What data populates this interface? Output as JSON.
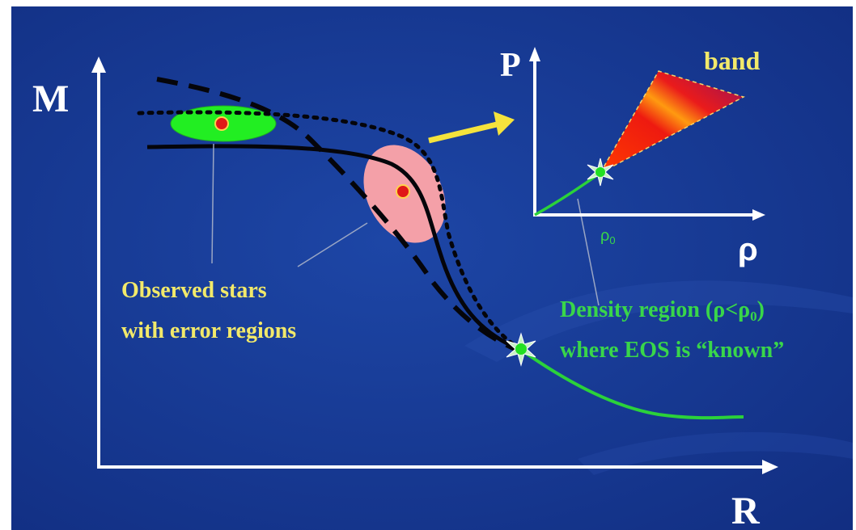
{
  "diagram": {
    "main_axes": {
      "y_label": "M",
      "x_label": "R"
    },
    "inset_axes": {
      "y_label": "P",
      "x_label": "ρ",
      "x_tick": "ρ",
      "x_tick_sub": "0",
      "band_label": "band"
    },
    "observed_caption": {
      "line1": "Observed stars",
      "line2": "with error regions"
    },
    "density_caption": {
      "line1_prefix": "Density region (ρ<ρ",
      "line1_sub": "0",
      "line1_suffix": ")",
      "line2": "where EOS is “known”"
    }
  },
  "colors": {
    "background": "#173a93",
    "axis": "#ffffff",
    "known_curve": "#2bd23a",
    "caption_yellow": "#f2e96a",
    "caption_green": "#39d64a",
    "arrow_yellow": "#f5e33c",
    "error_green": "#22ee22",
    "error_pink": "#f4a0a8",
    "star_red": "#e01818"
  }
}
